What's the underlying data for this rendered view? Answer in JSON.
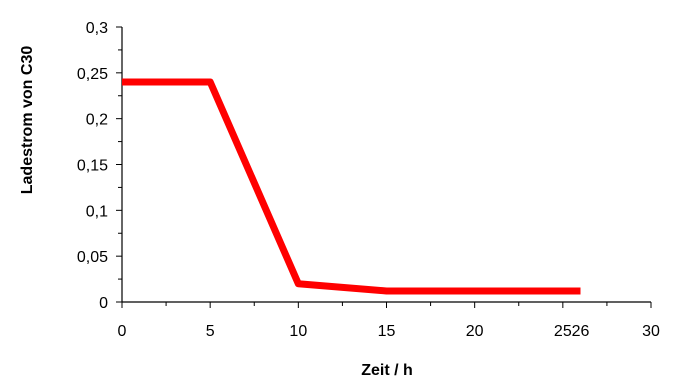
{
  "chart_data": {
    "type": "line",
    "xlabel": "Zeit / h",
    "ylabel": "Ladestrom von C30",
    "xlim": [
      0,
      30
    ],
    "ylim": [
      0,
      0.3
    ],
    "x_ticks": [
      0,
      5,
      10,
      15,
      20,
      25,
      30
    ],
    "x_tick_labels": [
      "0",
      "5",
      "10",
      "15",
      "20",
      "25",
      "30"
    ],
    "y_ticks": [
      0,
      0.05,
      0.1,
      0.15,
      0.2,
      0.25,
      0.3
    ],
    "y_tick_labels": [
      "0",
      "0,05",
      "0,1",
      "0,15",
      "0,2",
      "0,25",
      "0,3"
    ],
    "extra_x_tick_label": {
      "value": 26,
      "label": "26"
    },
    "grid": false,
    "series": [
      {
        "color": "#ff0000",
        "x": [
          0,
          5,
          10,
          15,
          20,
          25,
          26
        ],
        "y": [
          0.24,
          0.24,
          0.02,
          0.012,
          0.012,
          0.012,
          0.012
        ]
      }
    ]
  }
}
